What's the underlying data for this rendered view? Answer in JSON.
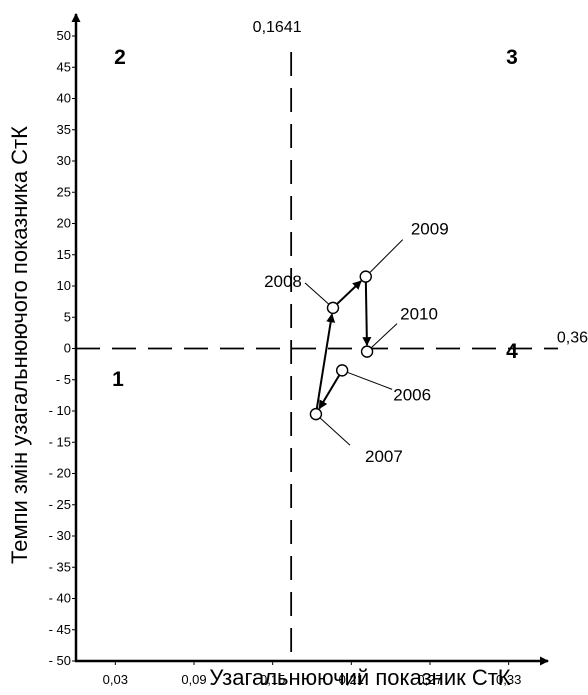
{
  "chart_data": {
    "type": "scatter",
    "xlabel": "Узагальнюючий показник СтК",
    "ylabel": "Темпи змін узагальнюючого показника СтК",
    "xlim": [
      0,
      0.36
    ],
    "ylim": [
      -50,
      52
    ],
    "x_ticks": [
      {
        "value": 0.03,
        "label": "0,03"
      },
      {
        "value": 0.09,
        "label": "0,09"
      },
      {
        "value": 0.15,
        "label": "0,15"
      },
      {
        "value": 0.21,
        "label": "0,21"
      },
      {
        "value": 0.27,
        "label": "0,27"
      },
      {
        "value": 0.33,
        "label": "0,33"
      }
    ],
    "y_ticks": [
      {
        "value": 50,
        "label": "50"
      },
      {
        "value": 45,
        "label": "45"
      },
      {
        "value": 40,
        "label": "40"
      },
      {
        "value": 35,
        "label": "35"
      },
      {
        "value": 30,
        "label": "30"
      },
      {
        "value": 25,
        "label": "25"
      },
      {
        "value": 20,
        "label": "20"
      },
      {
        "value": 15,
        "label": "15"
      },
      {
        "value": 10,
        "label": "10"
      },
      {
        "value": 5,
        "label": "5"
      },
      {
        "value": 0,
        "label": "0"
      },
      {
        "value": -5,
        "label": "- 5"
      },
      {
        "value": -10,
        "label": "- 10"
      },
      {
        "value": -15,
        "label": "- 15"
      },
      {
        "value": -20,
        "label": "- 20"
      },
      {
        "value": -25,
        "label": "- 25"
      },
      {
        "value": -30,
        "label": "- 30"
      },
      {
        "value": -35,
        "label": "- 35"
      },
      {
        "value": -40,
        "label": "- 40"
      },
      {
        "value": -45,
        "label": "- 45"
      },
      {
        "value": -50,
        "label": "- 50"
      }
    ],
    "points": [
      {
        "label": "2006",
        "x": 0.203,
        "y": -3.5
      },
      {
        "label": "2007",
        "x": 0.183,
        "y": -10.5
      },
      {
        "label": "2008",
        "x": 0.196,
        "y": 6.5
      },
      {
        "label": "2009",
        "x": 0.221,
        "y": 11.5
      },
      {
        "label": "2010",
        "x": 0.222,
        "y": -0.5
      }
    ],
    "reference_lines": {
      "vertical": {
        "value": 0.1641,
        "label": "0,1641"
      },
      "horizontal": {
        "value": 0,
        "label": "0,36"
      }
    },
    "quadrants": [
      "1",
      "2",
      "3",
      "4"
    ],
    "grid": false,
    "legend": "none"
  }
}
